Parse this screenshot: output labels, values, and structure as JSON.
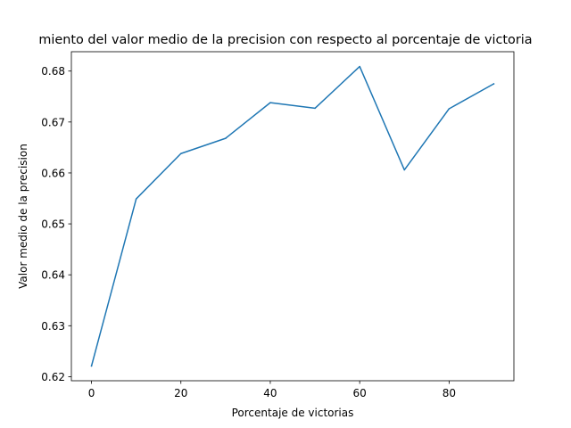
{
  "chart_data": {
    "type": "line",
    "title": "miento del valor medio de la precision con respecto al porcentaje de victoria",
    "xlabel": "Porcentaje de victorias",
    "ylabel": "Valor medio de la precision",
    "x": [
      0,
      10,
      20,
      30,
      40,
      50,
      60,
      70,
      80,
      90
    ],
    "series": [
      {
        "values": [
          0.6221,
          0.6549,
          0.6638,
          0.6668,
          0.6738,
          0.6727,
          0.6809,
          0.6606,
          0.6726,
          0.6775
        ],
        "color": "#1f77b4"
      }
    ],
    "xlim": [
      -4.5,
      94.5
    ],
    "ylim": [
      0.6192,
      0.6838
    ],
    "xticks": [
      0,
      20,
      40,
      60,
      80
    ],
    "xtick_labels": [
      "0",
      "20",
      "40",
      "60",
      "80"
    ],
    "yticks": [
      0.62,
      0.63,
      0.64,
      0.65,
      0.66,
      0.67,
      0.68
    ],
    "ytick_labels": [
      "0.62",
      "0.63",
      "0.64",
      "0.65",
      "0.66",
      "0.67",
      "0.68"
    ],
    "grid": false,
    "legend": false
  }
}
